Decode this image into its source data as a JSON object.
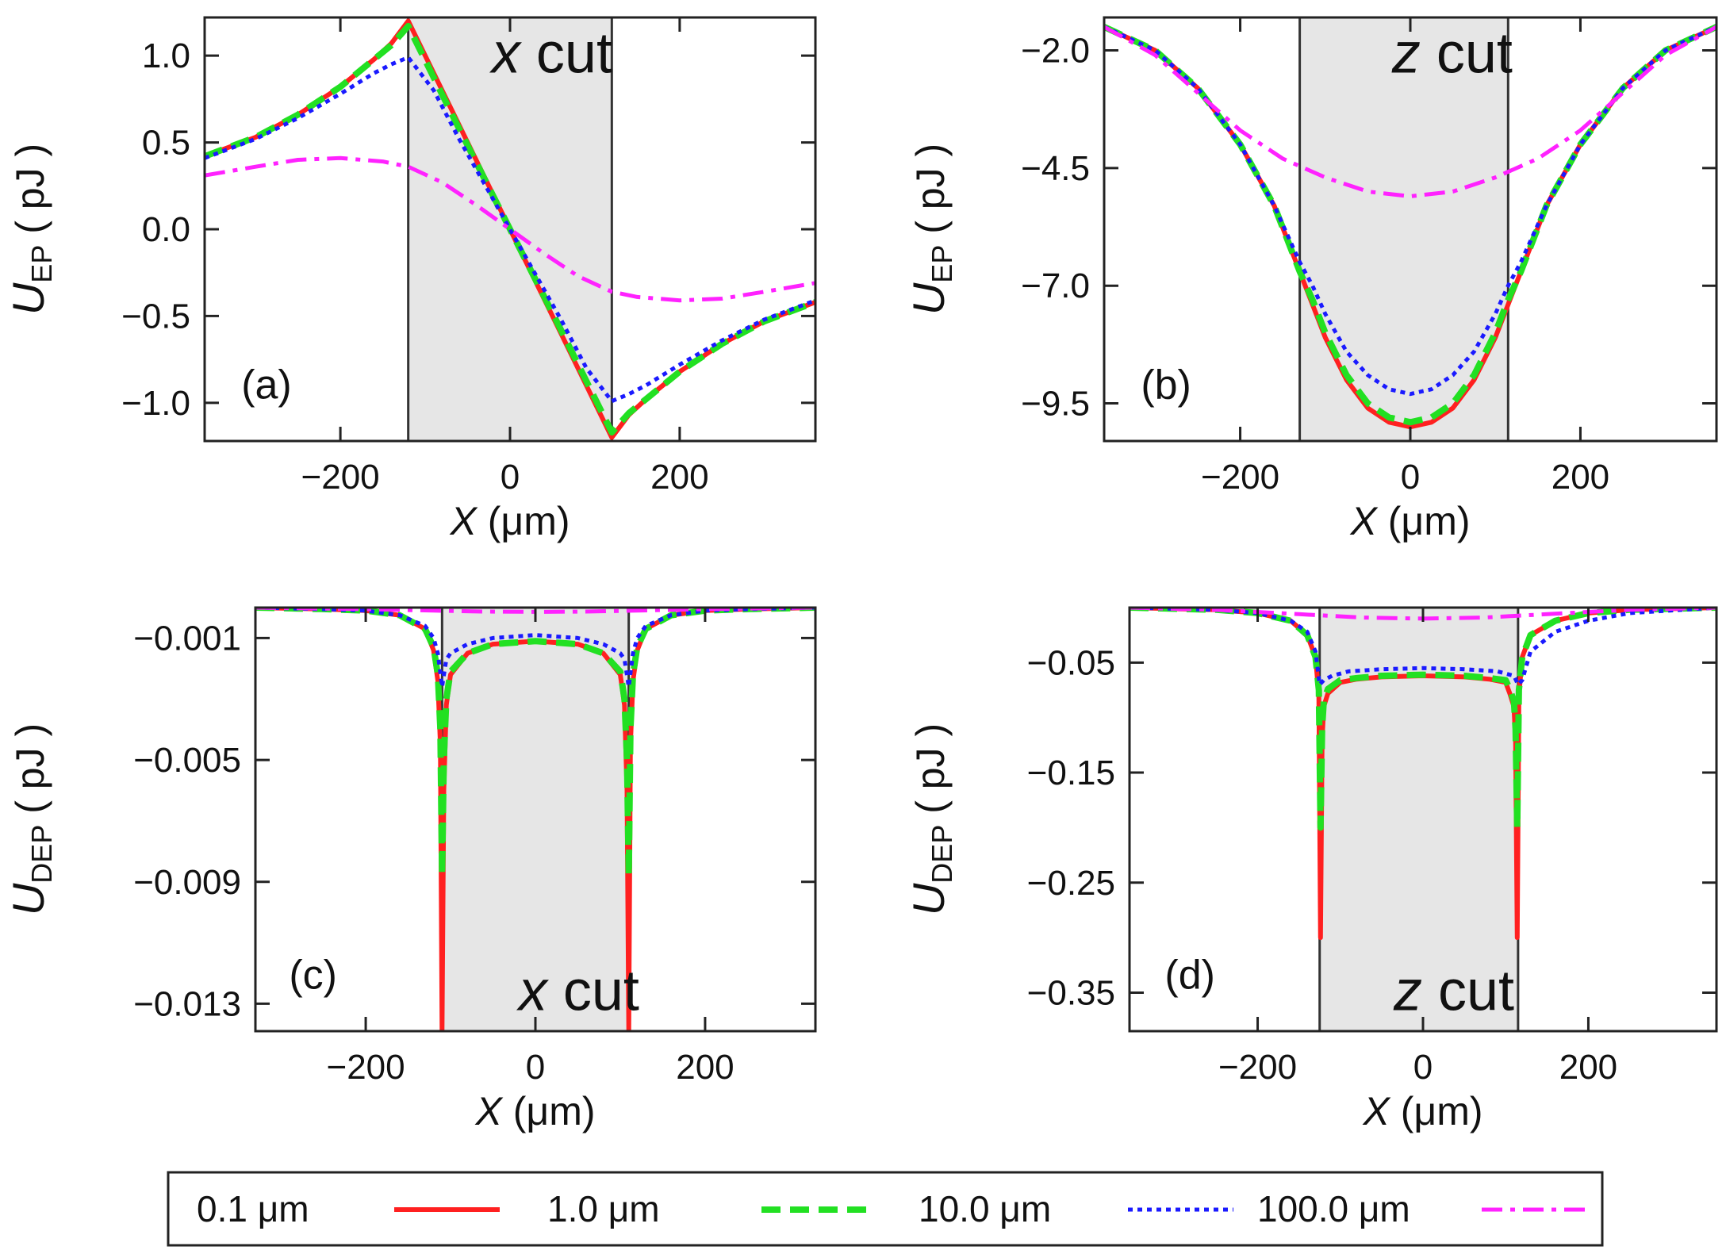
{
  "legend": [
    {
      "label": "0.1 μm",
      "color": "#ff2020",
      "dash": "solid"
    },
    {
      "label": "1.0 μm",
      "color": "#22e022",
      "dash": "dashed"
    },
    {
      "label": "10.0 μm",
      "color": "#1a1aff",
      "dash": "dotted"
    },
    {
      "label": "100.0 μm",
      "color": "#ff22ff",
      "dash": "dashdot"
    }
  ],
  "chart_data": [
    {
      "type": "line",
      "panel_label": "(a)",
      "annotation": "x cut",
      "annotation_italic": "x",
      "annotation_rest": " cut",
      "xlabel": "X (μm)",
      "ylabel": "U_EP ( pJ )",
      "ylabel_main": "U",
      "ylabel_sub": "EP",
      "ylabel_unit": " ( pJ )",
      "xlim": [
        -360,
        360
      ],
      "ylim": [
        -1.22,
        1.22
      ],
      "xticks": [
        -200,
        0,
        200
      ],
      "xtick_labels": [
        "−200",
        "0",
        "200"
      ],
      "yticks": [
        1.0,
        0.5,
        0.0,
        -0.5,
        -1.0
      ],
      "ytick_labels": [
        "1.0",
        "0.5",
        "0.0",
        "−0.5",
        "−1.0"
      ],
      "shaded_region": [
        -120,
        120
      ],
      "series": [
        {
          "name": "0.1 μm",
          "x": [
            -360,
            -300,
            -250,
            -200,
            -160,
            -140,
            -120,
            -60,
            0,
            60,
            120,
            140,
            160,
            200,
            250,
            300,
            360
          ],
          "y": [
            0.42,
            0.53,
            0.66,
            0.82,
            0.98,
            1.07,
            1.2,
            0.6,
            0.0,
            -0.6,
            -1.2,
            -1.07,
            -0.98,
            -0.82,
            -0.66,
            -0.53,
            -0.42
          ]
        },
        {
          "name": "1.0 μm",
          "x": [
            -360,
            -300,
            -250,
            -200,
            -160,
            -140,
            -120,
            -60,
            0,
            60,
            120,
            140,
            160,
            200,
            250,
            300,
            360
          ],
          "y": [
            0.42,
            0.53,
            0.66,
            0.82,
            0.98,
            1.06,
            1.17,
            0.58,
            0.0,
            -0.58,
            -1.17,
            -1.06,
            -0.98,
            -0.82,
            -0.66,
            -0.53,
            -0.42
          ]
        },
        {
          "name": "10.0 μm",
          "x": [
            -360,
            -300,
            -250,
            -200,
            -160,
            -140,
            -120,
            -90,
            -60,
            0,
            60,
            90,
            120,
            140,
            160,
            200,
            250,
            300,
            360
          ],
          "y": [
            0.41,
            0.52,
            0.64,
            0.78,
            0.9,
            0.95,
            0.99,
            0.8,
            0.52,
            0.0,
            -0.52,
            -0.8,
            -0.99,
            -0.95,
            -0.9,
            -0.78,
            -0.64,
            -0.52,
            -0.41
          ]
        },
        {
          "name": "100.0 μm",
          "x": [
            -360,
            -300,
            -250,
            -200,
            -150,
            -120,
            -80,
            -40,
            0,
            40,
            80,
            120,
            150,
            200,
            250,
            300,
            360
          ],
          "y": [
            0.31,
            0.36,
            0.4,
            0.41,
            0.39,
            0.36,
            0.27,
            0.14,
            0.0,
            -0.14,
            -0.27,
            -0.36,
            -0.39,
            -0.41,
            -0.4,
            -0.36,
            -0.31
          ]
        }
      ]
    },
    {
      "type": "line",
      "panel_label": "(b)",
      "annotation": "z cut",
      "annotation_italic": "z",
      "annotation_rest": " cut",
      "xlabel": "X (μm)",
      "ylabel": "U_EP ( pJ )",
      "ylabel_main": "U",
      "ylabel_sub": "EP",
      "ylabel_unit": " ( pJ )",
      "xlim": [
        -360,
        360
      ],
      "ylim": [
        -10.3,
        -1.3
      ],
      "xticks": [
        -200,
        0,
        200
      ],
      "xtick_labels": [
        "−200",
        "0",
        "200"
      ],
      "yticks": [
        -2.0,
        -4.5,
        -7.0,
        -9.5
      ],
      "ytick_labels": [
        "−2.0",
        "−4.5",
        "−7.0",
        "−9.5"
      ],
      "shaded_region": [
        -130,
        115
      ],
      "series": [
        {
          "name": "0.1 μm",
          "x": [
            -360,
            -300,
            -250,
            -200,
            -160,
            -130,
            -115,
            -100,
            -75,
            -50,
            -25,
            0,
            25,
            50,
            75,
            100,
            115,
            130,
            160,
            200,
            250,
            300,
            360
          ],
          "y": [
            -1.5,
            -2.0,
            -2.8,
            -4.0,
            -5.3,
            -6.7,
            -7.4,
            -8.1,
            -9.0,
            -9.6,
            -9.9,
            -10.0,
            -9.9,
            -9.6,
            -9.0,
            -8.1,
            -7.4,
            -6.7,
            -5.3,
            -4.0,
            -2.8,
            -2.0,
            -1.5
          ]
        },
        {
          "name": "1.0 μm",
          "x": [
            -360,
            -300,
            -250,
            -200,
            -160,
            -130,
            -115,
            -100,
            -75,
            -50,
            -25,
            0,
            25,
            50,
            75,
            100,
            115,
            130,
            160,
            200,
            250,
            300,
            360
          ],
          "y": [
            -1.5,
            -2.0,
            -2.8,
            -4.0,
            -5.3,
            -6.7,
            -7.3,
            -8.0,
            -8.9,
            -9.5,
            -9.8,
            -9.9,
            -9.8,
            -9.5,
            -8.9,
            -8.0,
            -7.3,
            -6.7,
            -5.3,
            -4.0,
            -2.8,
            -2.0,
            -1.5
          ]
        },
        {
          "name": "10.0 μm",
          "x": [
            -360,
            -300,
            -250,
            -200,
            -160,
            -130,
            -115,
            -100,
            -75,
            -50,
            -25,
            0,
            25,
            50,
            75,
            100,
            115,
            130,
            160,
            200,
            250,
            300,
            360
          ],
          "y": [
            -1.5,
            -2.0,
            -2.8,
            -4.0,
            -5.3,
            -6.5,
            -7.0,
            -7.6,
            -8.4,
            -8.9,
            -9.2,
            -9.3,
            -9.2,
            -8.9,
            -8.4,
            -7.6,
            -7.0,
            -6.5,
            -5.3,
            -4.0,
            -2.8,
            -2.0,
            -1.5
          ]
        },
        {
          "name": "100.0 μm",
          "x": [
            -360,
            -300,
            -250,
            -200,
            -150,
            -100,
            -50,
            0,
            50,
            100,
            150,
            200,
            250,
            300,
            360
          ],
          "y": [
            -1.5,
            -2.1,
            -2.9,
            -3.7,
            -4.3,
            -4.7,
            -5.0,
            -5.1,
            -5.0,
            -4.7,
            -4.3,
            -3.7,
            -2.9,
            -2.1,
            -1.5
          ]
        }
      ]
    },
    {
      "type": "line",
      "panel_label": "(c)",
      "annotation": "x cut",
      "annotation_italic": "x",
      "annotation_rest": " cut",
      "xlabel": "X (μm)",
      "ylabel": "U_DEP ( pJ )",
      "ylabel_main": "U",
      "ylabel_sub": "DEP",
      "ylabel_unit": " ( pJ )",
      "xlim": [
        -330,
        330
      ],
      "ylim": [
        -0.0139,
        0
      ],
      "xticks": [
        -200,
        0,
        200
      ],
      "xtick_labels": [
        "−200",
        "0",
        "200"
      ],
      "yticks": [
        -0.001,
        -0.005,
        -0.009,
        -0.013
      ],
      "ytick_labels": [
        "−0.001",
        "−0.005",
        "−0.009",
        "−0.013"
      ],
      "shaded_region": [
        -110,
        110
      ],
      "series": [
        {
          "name": "0.1 μm",
          "x": [
            -330,
            -250,
            -200,
            -160,
            -130,
            -120,
            -115,
            -112,
            -110,
            -108,
            -105,
            -100,
            -80,
            -50,
            0,
            50,
            80,
            100,
            105,
            108,
            110,
            112,
            115,
            120,
            130,
            160,
            200,
            250,
            330
          ],
          "y": [
            0,
            -5e-05,
            -0.0001,
            -0.00025,
            -0.0007,
            -0.0014,
            -0.0024,
            -0.0045,
            -0.0139,
            -0.006,
            -0.0032,
            -0.0022,
            -0.0015,
            -0.0012,
            -0.0011,
            -0.0012,
            -0.0015,
            -0.0022,
            -0.0032,
            -0.006,
            -0.0139,
            -0.0045,
            -0.0024,
            -0.0014,
            -0.0007,
            -0.00025,
            -0.0001,
            -5e-05,
            0
          ]
        },
        {
          "name": "1.0 μm",
          "x": [
            -330,
            -250,
            -200,
            -160,
            -130,
            -120,
            -115,
            -112,
            -110,
            -108,
            -105,
            -100,
            -80,
            -50,
            0,
            50,
            80,
            100,
            105,
            108,
            110,
            112,
            115,
            120,
            130,
            160,
            200,
            250,
            330
          ],
          "y": [
            0,
            -5e-05,
            -0.0001,
            -0.00025,
            -0.0007,
            -0.0013,
            -0.0022,
            -0.004,
            -0.0088,
            -0.005,
            -0.003,
            -0.0021,
            -0.0015,
            -0.0012,
            -0.0011,
            -0.0012,
            -0.0015,
            -0.0021,
            -0.003,
            -0.005,
            -0.0088,
            -0.004,
            -0.0022,
            -0.0013,
            -0.0007,
            -0.00025,
            -0.0001,
            -5e-05,
            0
          ]
        },
        {
          "name": "10.0 μm",
          "x": [
            -330,
            -250,
            -200,
            -160,
            -130,
            -120,
            -115,
            -110,
            -105,
            -100,
            -80,
            -50,
            0,
            50,
            80,
            100,
            105,
            110,
            115,
            120,
            130,
            160,
            200,
            250,
            330
          ],
          "y": [
            0,
            -5e-05,
            -0.0001,
            -0.00025,
            -0.0006,
            -0.001,
            -0.0015,
            -0.0026,
            -0.0017,
            -0.0015,
            -0.0012,
            -0.001,
            -0.0009,
            -0.001,
            -0.0012,
            -0.0015,
            -0.0017,
            -0.0026,
            -0.0015,
            -0.001,
            -0.0006,
            -0.00025,
            -0.0001,
            -5e-05,
            0
          ]
        },
        {
          "name": "100.0 μm",
          "x": [
            -330,
            -200,
            -120,
            -60,
            0,
            60,
            120,
            200,
            330
          ],
          "y": [
            0,
            -5e-05,
            -0.0001,
            -0.00013,
            -0.00014,
            -0.00013,
            -0.0001,
            -5e-05,
            0
          ]
        }
      ]
    },
    {
      "type": "line",
      "panel_label": "(d)",
      "annotation": "z cut",
      "annotation_italic": "z",
      "annotation_rest": " cut",
      "xlabel": "X (μm)",
      "ylabel": "U_DEP ( pJ )",
      "ylabel_main": "U",
      "ylabel_sub": "DEP",
      "ylabel_unit": " ( pJ )",
      "xlim": [
        -355,
        355
      ],
      "ylim": [
        -0.385,
        0
      ],
      "xticks": [
        -200,
        0,
        200
      ],
      "xtick_labels": [
        "−200",
        "0",
        "200"
      ],
      "yticks": [
        -0.05,
        -0.15,
        -0.25,
        -0.35
      ],
      "ytick_labels": [
        "−0.05",
        "−0.15",
        "−0.25",
        "−0.35"
      ],
      "shaded_region": [
        -125,
        115
      ],
      "series": [
        {
          "name": "0.1 μm",
          "x": [
            -355,
            -250,
            -200,
            -160,
            -140,
            -130,
            -126,
            -124,
            -122,
            -120,
            -115,
            -100,
            -80,
            -50,
            0,
            50,
            80,
            100,
            105,
            110,
            112,
            114,
            116,
            120,
            130,
            160,
            200,
            250,
            355
          ],
          "y": [
            0,
            -0.002,
            -0.005,
            -0.012,
            -0.025,
            -0.045,
            -0.08,
            -0.3,
            -0.12,
            -0.09,
            -0.078,
            -0.068,
            -0.065,
            -0.063,
            -0.062,
            -0.063,
            -0.065,
            -0.068,
            -0.078,
            -0.09,
            -0.12,
            -0.3,
            -0.08,
            -0.045,
            -0.025,
            -0.012,
            -0.005,
            -0.002,
            0
          ]
        },
        {
          "name": "1.0 μm",
          "x": [
            -355,
            -250,
            -200,
            -160,
            -140,
            -130,
            -126,
            -124,
            -122,
            -120,
            -115,
            -100,
            -80,
            -50,
            0,
            50,
            80,
            100,
            105,
            110,
            112,
            114,
            116,
            120,
            130,
            160,
            200,
            250,
            355
          ],
          "y": [
            0,
            -0.002,
            -0.005,
            -0.012,
            -0.025,
            -0.045,
            -0.075,
            -0.2,
            -0.11,
            -0.085,
            -0.074,
            -0.066,
            -0.064,
            -0.062,
            -0.061,
            -0.062,
            -0.064,
            -0.066,
            -0.074,
            -0.085,
            -0.11,
            -0.2,
            -0.075,
            -0.045,
            -0.025,
            -0.012,
            -0.005,
            -0.002,
            0
          ]
        },
        {
          "name": "10.0 μm",
          "x": [
            -355,
            -250,
            -200,
            -160,
            -140,
            -130,
            -125,
            -120,
            -110,
            -90,
            -50,
            0,
            50,
            90,
            110,
            115,
            120,
            130,
            160,
            200,
            250,
            355
          ],
          "y": [
            0,
            -0.002,
            -0.005,
            -0.012,
            -0.022,
            -0.04,
            -0.07,
            -0.066,
            -0.062,
            -0.058,
            -0.056,
            -0.055,
            -0.056,
            -0.058,
            -0.062,
            -0.07,
            -0.066,
            -0.04,
            -0.022,
            -0.012,
            -0.005,
            0
          ]
        },
        {
          "name": "100.0 μm",
          "x": [
            -355,
            -250,
            -150,
            -75,
            0,
            75,
            150,
            250,
            355
          ],
          "y": [
            0,
            -0.002,
            -0.006,
            -0.009,
            -0.01,
            -0.009,
            -0.006,
            -0.002,
            0
          ]
        }
      ]
    }
  ]
}
